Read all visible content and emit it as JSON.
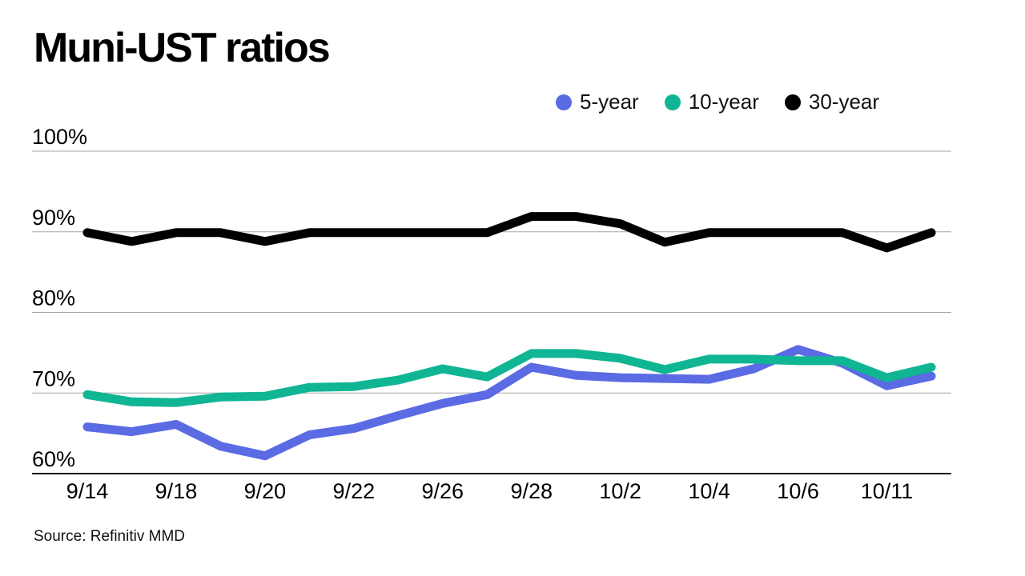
{
  "title": "Muni-UST ratios",
  "legend": {
    "items": [
      {
        "label": "5-year",
        "color": "#5A6BE3"
      },
      {
        "label": "10-year",
        "color": "#10B593"
      },
      {
        "label": "30-year",
        "color": "#000000"
      }
    ]
  },
  "source": "Source: Refinitiv MMD",
  "chart_data": {
    "type": "line",
    "title": "Muni-UST ratios",
    "x_tick_labels": [
      "9/14",
      "9/18",
      "9/20",
      "9/22",
      "9/26",
      "9/28",
      "10/2",
      "10/4",
      "10/6",
      "10/11"
    ],
    "x_tick_every": 2,
    "points_count": 20,
    "y_ticks": [
      100,
      90,
      80,
      70,
      60
    ],
    "y_tick_labels": [
      "100%",
      "90%",
      "80%",
      "70%",
      "60%"
    ],
    "ylim": [
      60,
      100
    ],
    "grid": "horizontal",
    "legend_position": "top-right",
    "colors": {
      "gridline": "#A6A6A6",
      "axis_line": "#1A1A1A",
      "label_text": "#000000"
    },
    "series": [
      {
        "name": "5-year",
        "color": "#5A6BE3",
        "values": [
          65.8,
          65.2,
          66.1,
          63.4,
          62.2,
          64.8,
          65.6,
          67.2,
          68.7,
          69.8,
          73.2,
          72.2,
          71.9,
          71.8,
          71.7,
          73.0,
          75.4,
          73.7,
          70.9,
          72.1
        ]
      },
      {
        "name": "10-year",
        "color": "#10B593",
        "values": [
          69.8,
          68.9,
          68.8,
          69.5,
          69.6,
          70.7,
          70.8,
          71.6,
          73.0,
          72.0,
          74.9,
          74.9,
          74.3,
          72.9,
          74.2,
          74.2,
          74.0,
          74.0,
          71.9,
          73.2
        ]
      },
      {
        "name": "30-year",
        "color": "#000000",
        "values": [
          89.9,
          88.8,
          89.9,
          89.9,
          88.8,
          89.9,
          89.9,
          89.9,
          89.9,
          89.9,
          91.9,
          91.9,
          91.0,
          88.7,
          89.9,
          89.9,
          89.9,
          89.9,
          88.0,
          89.9
        ]
      }
    ],
    "source": "Source: Refinitiv MMD"
  }
}
